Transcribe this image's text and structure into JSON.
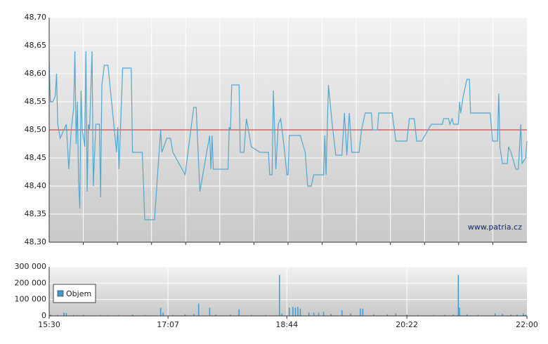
{
  "chart_data": [
    {
      "type": "line",
      "color": "#4fa8d2",
      "xlim": [
        "15:30",
        "22:00"
      ],
      "ylim": [
        48.3,
        48.7
      ],
      "yticks": [
        {
          "value": 48.3,
          "label": "48,30"
        },
        {
          "value": 48.35,
          "label": "48,35"
        },
        {
          "value": 48.4,
          "label": "48,40"
        },
        {
          "value": 48.45,
          "label": "48,45"
        },
        {
          "value": 48.5,
          "label": "48,50"
        },
        {
          "value": 48.55,
          "label": "48,55"
        },
        {
          "value": 48.6,
          "label": "48,60"
        },
        {
          "value": 48.65,
          "label": "48,65"
        },
        {
          "value": 48.7,
          "label": "48,70"
        }
      ],
      "reference_line": {
        "value": 48.5,
        "color": "#d42020"
      },
      "annotation": "www.patria.cz",
      "x": [
        "15:30",
        "15:31",
        "15:33",
        "15:35",
        "15:36",
        "15:37",
        "15:39",
        "15:41",
        "15:44",
        "15:46",
        "15:48",
        "15:50",
        "15:51",
        "15:52",
        "15:53",
        "15:54",
        "15:55",
        "15:56",
        "15:57",
        "15:59",
        "16:00",
        "16:01",
        "16:02",
        "16:03",
        "16:05",
        "16:06",
        "16:08",
        "16:11",
        "16:12",
        "16:13",
        "16:15",
        "16:18",
        "16:25",
        "16:26",
        "16:27",
        "16:30",
        "16:37",
        "16:38",
        "16:46",
        "16:47",
        "16:48",
        "16:56",
        "17:01",
        "17:02",
        "17:06",
        "17:09",
        "17:11",
        "17:21",
        "17:28",
        "17:30",
        "17:33",
        "17:41",
        "17:42",
        "17:43",
        "17:44",
        "17:56",
        "17:57",
        "17:58",
        "17:59",
        "18:05",
        "18:06",
        "18:09",
        "18:11",
        "18:15",
        "18:22",
        "18:29",
        "18:30",
        "18:32",
        "18:33",
        "18:35",
        "18:37",
        "18:39",
        "18:42",
        "18:44",
        "18:45",
        "18:46",
        "18:55",
        "18:59",
        "19:01",
        "19:04",
        "19:06",
        "19:14",
        "19:15",
        "19:16",
        "19:18",
        "19:21",
        "19:24",
        "19:29",
        "19:31",
        "19:33",
        "19:35",
        "19:37",
        "19:43",
        "19:45",
        "19:48",
        "19:53",
        "19:54",
        "19:58",
        "19:59",
        "20:10",
        "20:13",
        "20:22",
        "20:24",
        "20:28",
        "20:30",
        "20:34",
        "20:42",
        "20:51",
        "20:52",
        "20:56",
        "20:57",
        "20:59",
        "21:00",
        "21:04",
        "21:05",
        "21:06",
        "21:08",
        "21:11",
        "21:13",
        "21:14",
        "21:30",
        "21:32",
        "21:36",
        "21:37",
        "21:38",
        "21:40",
        "21:44",
        "21:45",
        "21:47",
        "21:51",
        "21:53",
        "21:55",
        "21:56",
        "21:59",
        "22:00"
      ],
      "values": [
        48.62,
        48.55,
        48.55,
        48.56,
        48.6,
        48.51,
        48.485,
        48.495,
        48.51,
        48.43,
        48.5,
        48.54,
        48.64,
        48.475,
        48.55,
        48.41,
        48.36,
        48.57,
        48.5,
        48.47,
        48.64,
        48.39,
        48.51,
        48.5,
        48.64,
        48.4,
        48.51,
        48.51,
        48.38,
        48.58,
        48.615,
        48.615,
        48.46,
        48.505,
        48.43,
        48.61,
        48.61,
        48.46,
        48.46,
        48.4,
        48.34,
        48.34,
        48.5,
        48.46,
        48.485,
        48.485,
        48.46,
        48.42,
        48.54,
        48.54,
        48.39,
        48.49,
        48.43,
        48.49,
        48.43,
        48.43,
        48.505,
        48.5,
        48.58,
        48.58,
        48.46,
        48.46,
        48.52,
        48.47,
        48.46,
        48.46,
        48.42,
        48.42,
        48.57,
        48.43,
        48.51,
        48.52,
        48.465,
        48.42,
        48.42,
        48.49,
        48.49,
        48.46,
        48.4,
        48.4,
        48.42,
        48.42,
        48.49,
        48.42,
        48.58,
        48.51,
        48.455,
        48.455,
        48.53,
        48.455,
        48.53,
        48.46,
        48.46,
        48.5,
        48.53,
        48.53,
        48.5,
        48.5,
        48.53,
        48.53,
        48.48,
        48.48,
        48.52,
        48.52,
        48.48,
        48.48,
        48.51,
        48.51,
        48.52,
        48.52,
        48.51,
        48.52,
        48.51,
        48.51,
        48.55,
        48.53,
        48.56,
        48.59,
        48.59,
        48.53,
        48.53,
        48.48,
        48.48,
        48.565,
        48.47,
        48.44,
        48.44,
        48.47,
        48.46,
        48.43,
        48.43,
        48.51,
        48.44,
        48.45,
        48.48
      ]
    },
    {
      "type": "bar",
      "xlim": [
        "15:30",
        "22:00"
      ],
      "xticks": [
        "15:30",
        "17:07",
        "18:44",
        "20:22",
        "22:00"
      ],
      "ylim": [
        0,
        300000
      ],
      "yticks": [
        0,
        {
          "value": 100000,
          "label": "100 000"
        },
        {
          "value": 200000,
          "label": "200 000"
        },
        {
          "value": 300000,
          "label": "300 000"
        }
      ],
      "legend": "upper left",
      "series": [
        {
          "name": "Objem",
          "color": "#3d9bd0",
          "x": [
            "15:31",
            "15:37",
            "15:42",
            "15:44",
            "15:50",
            "15:53",
            "15:58",
            "16:03",
            "16:12",
            "16:18",
            "16:27",
            "16:38",
            "16:48",
            "16:56",
            "17:01",
            "17:03",
            "17:11",
            "17:21",
            "17:28",
            "17:32",
            "17:41",
            "17:46",
            "17:58",
            "18:05",
            "18:15",
            "18:27",
            "18:38",
            "18:40",
            "18:46",
            "18:49",
            "18:51",
            "18:53",
            "18:55",
            "19:02",
            "19:06",
            "19:10",
            "19:14",
            "19:20",
            "19:29",
            "19:36",
            "19:44",
            "19:46",
            "19:55",
            "20:06",
            "20:13",
            "20:22",
            "20:31",
            "20:44",
            "20:53",
            "21:00",
            "21:04",
            "21:05",
            "21:11",
            "21:20",
            "21:34",
            "21:40",
            "21:47",
            "21:52",
            "21:57",
            "21:59"
          ],
          "values": [
            8000,
            6000,
            20000,
            18000,
            5000,
            4000,
            6000,
            3000,
            5000,
            4000,
            6000,
            8000,
            5000,
            3000,
            50000,
            20000,
            6000,
            10000,
            12000,
            75000,
            50000,
            8000,
            10000,
            40000,
            6000,
            5000,
            250000,
            15000,
            50000,
            55000,
            50000,
            55000,
            45000,
            20000,
            20000,
            20000,
            25000,
            12000,
            35000,
            15000,
            45000,
            45000,
            10000,
            10000,
            15000,
            8000,
            5000,
            6000,
            6000,
            10000,
            250000,
            50000,
            10000,
            6000,
            15000,
            12000,
            8000,
            10000,
            15000,
            8000
          ]
        }
      ]
    }
  ]
}
